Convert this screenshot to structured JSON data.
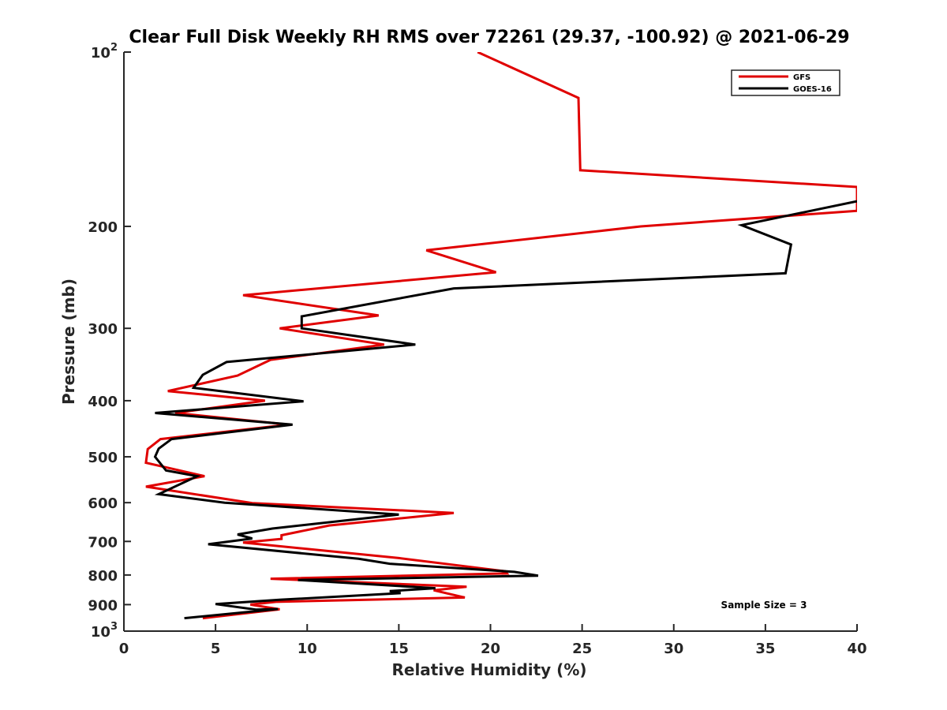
{
  "chart_data": {
    "type": "line",
    "title": "Clear Full Disk Weekly RH RMS over 72261 (29.37, -100.92) @ 2021-06-29",
    "xlabel": "Relative Humidity (%)",
    "ylabel": "Pressure (mb)",
    "xlim": [
      0,
      40
    ],
    "ylim": [
      100,
      1000
    ],
    "y_scale": "log",
    "y_reversed": true,
    "grid": false,
    "legend_position": "top-right",
    "x_ticks": [
      0,
      5,
      10,
      15,
      20,
      25,
      30,
      35,
      40
    ],
    "y_ticks": [
      {
        "value": 100,
        "base": "10",
        "exp": "2"
      },
      {
        "value": 200,
        "label": "200"
      },
      {
        "value": 300,
        "label": "300"
      },
      {
        "value": 400,
        "label": "400"
      },
      {
        "value": 500,
        "label": "500"
      },
      {
        "value": 600,
        "label": "600"
      },
      {
        "value": 700,
        "label": "700"
      },
      {
        "value": 800,
        "label": "800"
      },
      {
        "value": 900,
        "label": "900"
      },
      {
        "value": 1000,
        "base": "10",
        "exp": "3"
      }
    ],
    "series": [
      {
        "name": "GFS",
        "color": "#e00000",
        "points": [
          [
            19.3,
            100
          ],
          [
            24.8,
            120
          ],
          [
            24.9,
            160
          ],
          [
            40,
            171
          ],
          [
            40,
            188
          ],
          [
            28.2,
            200
          ],
          [
            16.5,
            220
          ],
          [
            20.3,
            240
          ],
          [
            6.5,
            263
          ],
          [
            13.9,
            285
          ],
          [
            8.5,
            300
          ],
          [
            14.2,
            320
          ],
          [
            8.0,
            340
          ],
          [
            6.2,
            362
          ],
          [
            2.4,
            385
          ],
          [
            7.7,
            400
          ],
          [
            2.8,
            420
          ],
          [
            9.0,
            440
          ],
          [
            2.0,
            466
          ],
          [
            1.3,
            485
          ],
          [
            1.2,
            512
          ],
          [
            4.4,
            540
          ],
          [
            1.2,
            563
          ],
          [
            7.0,
            601
          ],
          [
            18.0,
            625
          ],
          [
            11.2,
            657
          ],
          [
            8.6,
            683
          ],
          [
            8.6,
            693
          ],
          [
            6.5,
            703
          ],
          [
            15.0,
            748
          ],
          [
            20.8,
            788
          ],
          [
            20.9,
            795
          ],
          [
            8.0,
            812
          ],
          [
            18.7,
            838
          ],
          [
            16.9,
            850
          ],
          [
            18.6,
            875
          ],
          [
            8.3,
            890
          ],
          [
            6.9,
            900
          ],
          [
            8.5,
            917
          ],
          [
            4.3,
            950
          ]
        ]
      },
      {
        "name": "GOES-16",
        "color": "#000000",
        "points": [
          [
            40,
            181
          ],
          [
            33.7,
            199
          ],
          [
            36.4,
            215
          ],
          [
            36.1,
            241
          ],
          [
            18.0,
            256
          ],
          [
            9.7,
            286
          ],
          [
            9.7,
            300
          ],
          [
            15.9,
            320
          ],
          [
            5.6,
            343
          ],
          [
            4.3,
            361
          ],
          [
            3.8,
            380
          ],
          [
            9.8,
            401
          ],
          [
            1.7,
            420
          ],
          [
            9.2,
            440
          ],
          [
            2.6,
            466
          ],
          [
            1.9,
            484
          ],
          [
            1.7,
            500
          ],
          [
            2.3,
            528
          ],
          [
            4.0,
            540
          ],
          [
            1.9,
            580
          ],
          [
            5.5,
            600
          ],
          [
            15.0,
            629
          ],
          [
            8.1,
            665
          ],
          [
            6.2,
            681
          ],
          [
            7.0,
            692
          ],
          [
            4.6,
            708
          ],
          [
            12.8,
            750
          ],
          [
            14.5,
            765
          ],
          [
            21.3,
            790
          ],
          [
            22.6,
            802
          ],
          [
            9.5,
            816
          ],
          [
            17.0,
            843
          ],
          [
            14.5,
            853
          ],
          [
            15.1,
            860
          ],
          [
            8.5,
            883
          ],
          [
            5.0,
            898
          ],
          [
            7.2,
            918
          ],
          [
            8.4,
            916
          ],
          [
            3.3,
            950
          ]
        ]
      }
    ],
    "annotation": "Sample Size = 3"
  }
}
